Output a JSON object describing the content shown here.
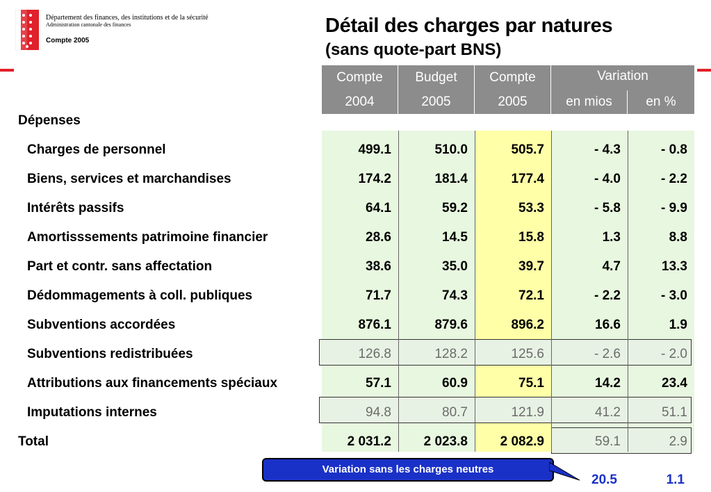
{
  "header": {
    "dept_line1": "Département des finances, des institutions et de la sécurité",
    "dept_line2": "Administration cantonale des finances",
    "compte_label": "Compte 2005",
    "title": "Détail des charges par natures",
    "subtitle": "(sans quote-part BNS)"
  },
  "columns": {
    "c1_top": "Compte",
    "c1_bottom": "2004",
    "c2_top": "Budget",
    "c2_bottom": "2005",
    "c3_top": "Compte",
    "c3_bottom": "2005",
    "var_top": "Variation",
    "c4_bottom": "en mios",
    "c5_bottom": "en %"
  },
  "section_label": "Dépenses",
  "rows": [
    {
      "label": "Charges de personnel",
      "v": [
        "499.1",
        "510.0",
        "505.7",
        "-  4.3",
        "-  0.8"
      ]
    },
    {
      "label": "Biens, services et marchandises",
      "v": [
        "174.2",
        "181.4",
        "177.4",
        "-  4.0",
        "-  2.2"
      ]
    },
    {
      "label": "Intérêts passifs",
      "v": [
        "64.1",
        "59.2",
        "53.3",
        "-  5.8",
        "-  9.9"
      ]
    },
    {
      "label": "Amortisssements patrimoine financier",
      "v": [
        "28.6",
        "14.5",
        "15.8",
        "1.3",
        "8.8"
      ]
    },
    {
      "label": "Part et contr. sans affectation",
      "v": [
        "38.6",
        "35.0",
        "39.7",
        "4.7",
        "13.3"
      ]
    },
    {
      "label": "Dédommagements à coll. publiques",
      "v": [
        "71.7",
        "74.3",
        "72.1",
        "-  2.2",
        "-  3.0"
      ]
    },
    {
      "label": "Subventions accordées",
      "v": [
        "876.1",
        "879.6",
        "896.2",
        "16.6",
        "1.9"
      ]
    },
    {
      "label": "Subventions redistribuées",
      "v": [
        "126.8",
        "128.2",
        "125.6",
        "-  2.6",
        "-  2.0"
      ]
    },
    {
      "label": "Attributions aux financements spéciaux",
      "v": [
        "57.1",
        "60.9",
        "75.1",
        "14.2",
        "23.4"
      ]
    },
    {
      "label": "Imputations internes",
      "v": [
        "94.8",
        "80.7",
        "121.9",
        "41.2",
        "51.1"
      ]
    }
  ],
  "total": {
    "label": "Total",
    "v": [
      "2 031.2",
      "2 023.8",
      "2 082.9",
      "59.1",
      "2.9"
    ]
  },
  "callout": {
    "text": "Variation sans les charges neutres",
    "v_mios": "20.5",
    "v_pct": "1.1"
  }
}
